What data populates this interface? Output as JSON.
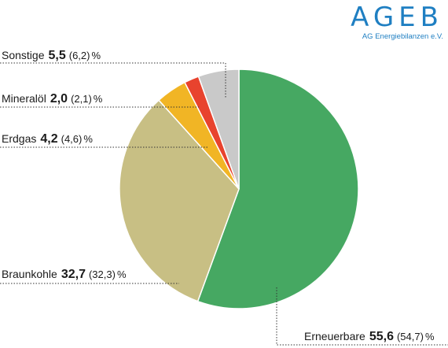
{
  "logo": {
    "mark": "AGEB",
    "subtitle": "AG Energiebilanzen e.V."
  },
  "chart_data": {
    "type": "pie",
    "unit": "%",
    "slices": [
      {
        "name": "Erneuerbare",
        "value": "55,6",
        "prev": "(54,7)",
        "num": 55.6,
        "color": "#46a862"
      },
      {
        "name": "Braunkohle",
        "value": "32,7",
        "prev": "(32,3)",
        "num": 32.7,
        "color": "#c8bf84"
      },
      {
        "name": "Erdgas",
        "value": "4,2",
        "prev": "(4,6)",
        "num": 4.2,
        "color": "#f1b525"
      },
      {
        "name": "Mineralöl",
        "value": "2,0",
        "prev": "(2,1)",
        "num": 2.0,
        "color": "#e8432e"
      },
      {
        "name": "Sonstige",
        "value": "5,5",
        "prev": "(6,2)",
        "num": 5.5,
        "color": "#c9c9c9"
      }
    ]
  }
}
